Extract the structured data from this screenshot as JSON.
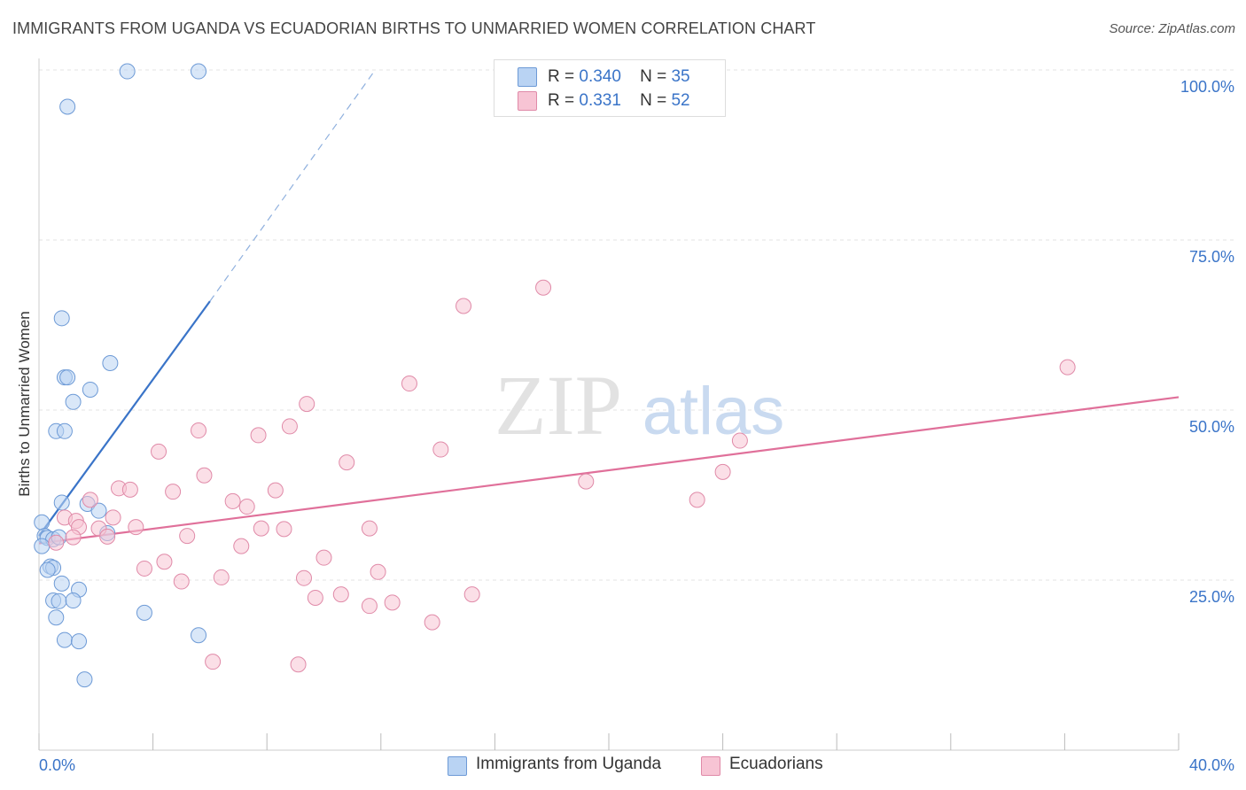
{
  "title": "IMMIGRANTS FROM UGANDA VS ECUADORIAN BIRTHS TO UNMARRIED WOMEN CORRELATION CHART",
  "source": "Source: ZipAtlas.com",
  "watermark": {
    "zip": "ZIP",
    "atlas": "atlas"
  },
  "colors": {
    "blue": "#3a74c8",
    "blue_fill": "#b9d3f3",
    "pink": "#e0709a",
    "pink_fill": "#f7c4d4",
    "axis_text": "#3a74c8"
  },
  "legend_stats": [
    {
      "r_label": "R =",
      "r_value": "0.340",
      "n_label": "N =",
      "n_value": "35"
    },
    {
      "r_label": "R =",
      "r_value": "0.331",
      "n_label": "N =",
      "n_value": "52"
    }
  ],
  "chart_data": {
    "type": "scatter",
    "title": "IMMIGRANTS FROM UGANDA VS ECUADORIAN BIRTHS TO UNMARRIED WOMEN CORRELATION CHART",
    "xlabel": "",
    "ylabel": "Births to Unmarried Women",
    "xlim": [
      0,
      40
    ],
    "ylim": [
      0,
      100
    ],
    "x_tick_labels": [
      "0.0%",
      "40.0%"
    ],
    "y_tick_labels": [
      "25.0%",
      "50.0%",
      "75.0%",
      "100.0%"
    ],
    "y_ticks": [
      25,
      50,
      75,
      100
    ],
    "legend_position": "bottom",
    "series": [
      {
        "name": "Immigrants from Uganda",
        "color": "#3a74c8",
        "points": [
          [
            3.1,
            99.8
          ],
          [
            5.6,
            99.8
          ],
          [
            1.0,
            94.6
          ],
          [
            0.8,
            63.5
          ],
          [
            2.5,
            56.9
          ],
          [
            0.9,
            54.8
          ],
          [
            1.0,
            54.8
          ],
          [
            1.8,
            53.0
          ],
          [
            1.2,
            51.2
          ],
          [
            0.6,
            46.9
          ],
          [
            0.9,
            46.9
          ],
          [
            0.8,
            36.4
          ],
          [
            1.7,
            36.2
          ],
          [
            2.1,
            35.2
          ],
          [
            2.4,
            31.9
          ],
          [
            0.1,
            33.5
          ],
          [
            0.2,
            31.5
          ],
          [
            0.3,
            31.2
          ],
          [
            0.5,
            31.0
          ],
          [
            0.7,
            31.3
          ],
          [
            0.1,
            30.0
          ],
          [
            0.4,
            27.0
          ],
          [
            0.5,
            26.8
          ],
          [
            0.3,
            26.5
          ],
          [
            0.8,
            24.5
          ],
          [
            1.4,
            23.6
          ],
          [
            0.5,
            22.0
          ],
          [
            0.7,
            21.9
          ],
          [
            1.2,
            22.0
          ],
          [
            0.6,
            19.5
          ],
          [
            3.7,
            20.2
          ],
          [
            0.9,
            16.2
          ],
          [
            1.4,
            16.0
          ],
          [
            5.6,
            16.9
          ],
          [
            1.6,
            10.4
          ]
        ],
        "trend": {
          "x0": 0.0,
          "y0": 31.5,
          "x1": 6.0,
          "y1": 66.0,
          "dash_to_x": 11.8,
          "dash_to_y": 100.0
        }
      },
      {
        "name": "Ecuadorians",
        "color": "#e0709a",
        "points": [
          [
            17.7,
            68.0
          ],
          [
            14.9,
            65.3
          ],
          [
            36.1,
            56.3
          ],
          [
            13.0,
            53.9
          ],
          [
            9.4,
            50.9
          ],
          [
            8.8,
            47.6
          ],
          [
            5.6,
            47.0
          ],
          [
            7.7,
            46.3
          ],
          [
            24.6,
            45.5
          ],
          [
            14.1,
            44.2
          ],
          [
            4.2,
            43.9
          ],
          [
            10.8,
            42.3
          ],
          [
            24.0,
            40.9
          ],
          [
            5.8,
            40.4
          ],
          [
            19.2,
            39.5
          ],
          [
            2.8,
            38.5
          ],
          [
            3.2,
            38.3
          ],
          [
            8.3,
            38.2
          ],
          [
            4.7,
            38.0
          ],
          [
            23.1,
            36.8
          ],
          [
            6.8,
            36.6
          ],
          [
            7.3,
            35.8
          ],
          [
            1.8,
            36.8
          ],
          [
            0.9,
            34.2
          ],
          [
            1.3,
            33.7
          ],
          [
            2.6,
            34.2
          ],
          [
            1.4,
            32.8
          ],
          [
            2.1,
            32.6
          ],
          [
            3.4,
            32.8
          ],
          [
            7.8,
            32.6
          ],
          [
            8.6,
            32.5
          ],
          [
            11.6,
            32.6
          ],
          [
            1.2,
            31.3
          ],
          [
            0.6,
            30.5
          ],
          [
            2.4,
            31.4
          ],
          [
            5.2,
            31.5
          ],
          [
            7.1,
            30.0
          ],
          [
            10.0,
            28.3
          ],
          [
            4.4,
            27.7
          ],
          [
            3.7,
            26.7
          ],
          [
            11.9,
            26.2
          ],
          [
            6.4,
            25.4
          ],
          [
            9.3,
            25.3
          ],
          [
            5.0,
            24.8
          ],
          [
            15.2,
            22.9
          ],
          [
            10.6,
            22.9
          ],
          [
            9.7,
            22.4
          ],
          [
            12.4,
            21.7
          ],
          [
            11.6,
            21.2
          ],
          [
            13.8,
            18.8
          ],
          [
            6.1,
            13.0
          ],
          [
            9.1,
            12.6
          ]
        ],
        "trend": {
          "x0": 0.0,
          "y0": 30.4,
          "x1": 40.0,
          "y1": 51.9
        }
      }
    ]
  }
}
